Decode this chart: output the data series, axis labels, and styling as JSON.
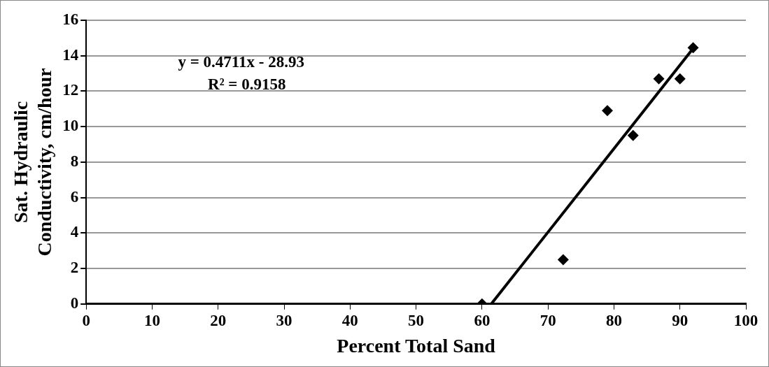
{
  "chart_data": {
    "type": "scatter",
    "xlabel": "Percent Total Sand",
    "ylabel": "Sat. Hydraulic Conductivity, cm/hour",
    "annotations": [
      "y = 0.4711x - 28.93",
      "R² = 0.9158"
    ],
    "series": [
      {
        "color": "#000000",
        "marker": "diamond",
        "x": [
          60,
          72.3,
          79,
          82.9,
          86.8,
          90,
          92
        ],
        "values": [
          0,
          2.5,
          10.9,
          9.5,
          12.7,
          12.7,
          14.45
        ]
      },
      {
        "type": "line",
        "color": "#000000",
        "marker": "none",
        "line_style": "solid",
        "x": [
          61.4,
          92
        ],
        "values": [
          0,
          14.41
        ]
      }
    ],
    "xlim": [
      0,
      100
    ],
    "xticks": [
      0,
      10,
      20,
      30,
      40,
      50,
      60,
      70,
      80,
      90,
      100
    ],
    "ylim": [
      0,
      16
    ],
    "yticks": [
      0,
      2,
      4,
      6,
      8,
      10,
      12,
      14,
      16
    ],
    "grid": "y",
    "legend": false
  }
}
